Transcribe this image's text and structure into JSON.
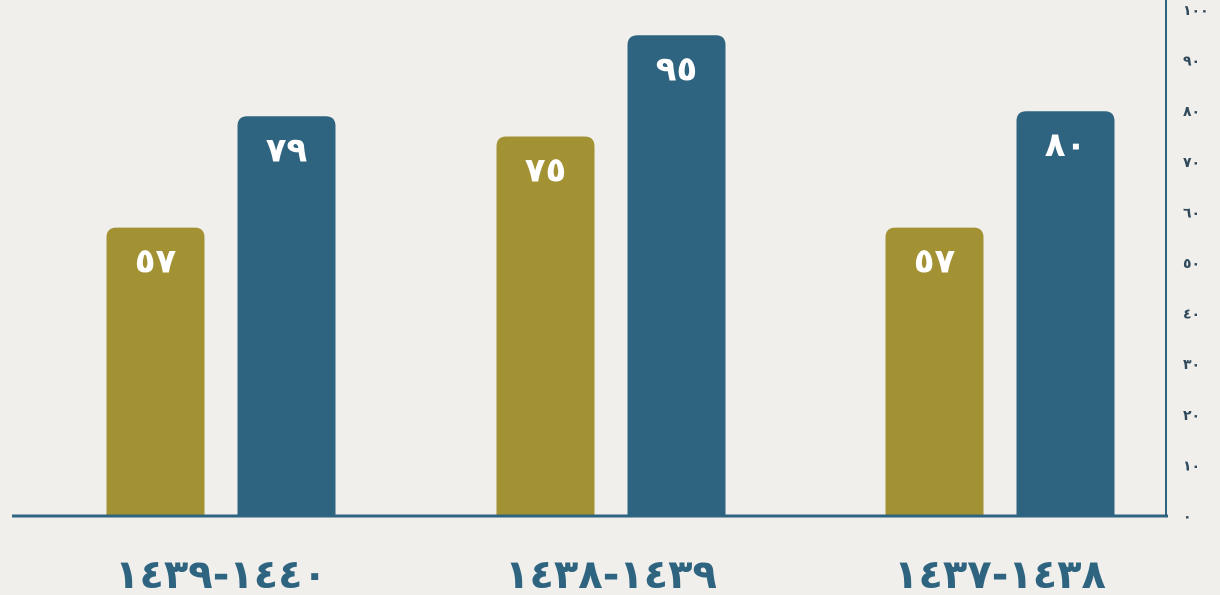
{
  "chart_data": {
    "type": "bar",
    "categories": [
      "١٤٤٠-١٤٣٩",
      "١٤٣٩-١٤٣٨",
      "١٤٣٨-١٤٣٧"
    ],
    "series": [
      {
        "values": [
          57,
          75,
          57
        ],
        "color": "#a39234"
      },
      {
        "values": [
          79,
          95,
          80
        ],
        "color": "#2e6480"
      }
    ],
    "value_labels": [
      [
        "٥٧",
        "٧٥",
        "٥٧"
      ],
      [
        "٧٩",
        "٩٥",
        "٨٠"
      ]
    ],
    "y_ticks": [
      0,
      10,
      20,
      30,
      40,
      50,
      60,
      70,
      80,
      90,
      100
    ],
    "y_tick_labels": [
      "٠",
      "١٠",
      "٢٠",
      "٣٠",
      "٤٠",
      "٥٠",
      "٦٠",
      "٧٠",
      "٨٠",
      "٩٠",
      "١٠٠"
    ],
    "ylim": [
      0,
      100
    ],
    "y_axis_position": "right",
    "grid": false,
    "colors": {
      "axis": "#2e6480",
      "background": "#f0efeb"
    }
  }
}
